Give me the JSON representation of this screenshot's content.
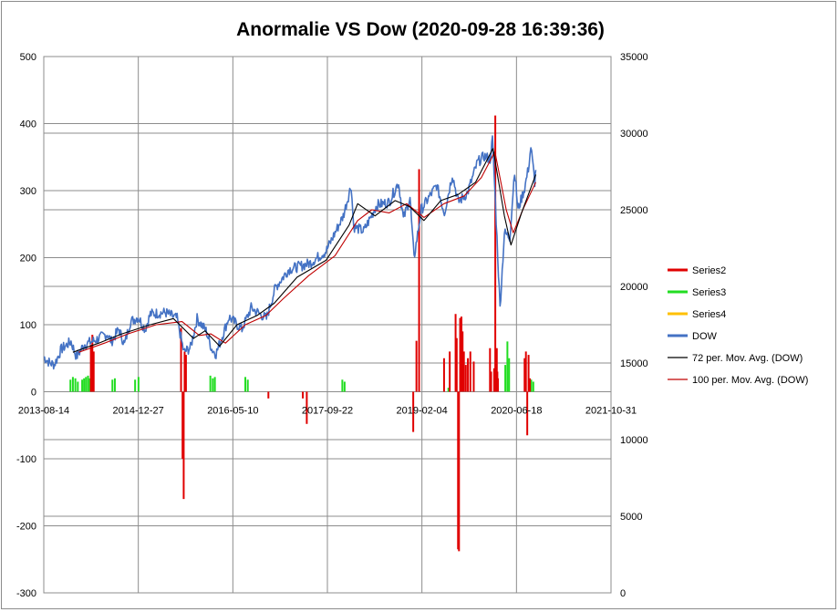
{
  "chart_data": {
    "type": "line",
    "title": "Anormalie VS Dow (2020-09-28 16:39:36)",
    "x_axis": {
      "ticks": [
        "2013-08-14",
        "2014-12-27",
        "2016-05-10",
        "2017-09-22",
        "2019-02-04",
        "2020-06-18",
        "2021-10-31"
      ],
      "range": [
        "2013-08-14",
        "2021-10-31"
      ]
    },
    "y_left": {
      "range": [
        -300,
        500
      ],
      "ticks": [
        -300,
        -200,
        -100,
        0,
        100,
        200,
        300,
        400,
        500
      ]
    },
    "y_right": {
      "range": [
        0,
        35000
      ],
      "ticks": [
        0,
        5000,
        10000,
        15000,
        20000,
        25000,
        30000,
        35000
      ]
    },
    "grid": true,
    "legend_position": "right",
    "series": [
      {
        "name": "Series2",
        "axis": "left",
        "style": "spikes",
        "color": "#e00000",
        "points": [
          [
            "2014-04-20",
            70
          ],
          [
            "2014-04-28",
            85
          ],
          [
            "2014-05-05",
            60
          ],
          [
            "2015-08-10",
            95
          ],
          [
            "2015-08-18",
            -100
          ],
          [
            "2015-08-24",
            -160
          ],
          [
            "2015-08-29",
            60
          ],
          [
            "2015-09-05",
            55
          ],
          [
            "2016-11-14",
            -10
          ],
          [
            "2017-05-15",
            -10
          ],
          [
            "2017-06-05",
            -48
          ],
          [
            "2018-12-20",
            -60
          ],
          [
            "2019-01-06",
            76
          ],
          [
            "2019-01-20",
            332
          ],
          [
            "2019-06-01",
            50
          ],
          [
            "2019-07-01",
            60
          ],
          [
            "2019-08-01",
            116
          ],
          [
            "2019-08-07",
            80
          ],
          [
            "2019-08-14",
            -235
          ],
          [
            "2019-08-19",
            -238
          ],
          [
            "2019-08-25",
            110
          ],
          [
            "2019-09-01",
            112
          ],
          [
            "2019-09-07",
            90
          ],
          [
            "2019-09-14",
            60
          ],
          [
            "2019-09-24",
            40
          ],
          [
            "2019-10-05",
            50
          ],
          [
            "2019-10-18",
            60
          ],
          [
            "2019-11-05",
            45
          ],
          [
            "2020-01-30",
            65
          ],
          [
            "2020-02-05",
            30
          ],
          [
            "2020-02-21",
            35
          ],
          [
            "2020-02-27",
            412
          ],
          [
            "2020-03-06",
            65
          ],
          [
            "2020-03-09",
            30
          ],
          [
            "2020-03-12",
            20
          ],
          [
            "2020-07-31",
            50
          ],
          [
            "2020-08-07",
            60
          ],
          [
            "2020-08-14",
            -65
          ],
          [
            "2020-08-21",
            55
          ],
          [
            "2020-08-28",
            20
          ]
        ]
      },
      {
        "name": "Series3",
        "axis": "left",
        "style": "spikes",
        "color": "#22dd22",
        "points": [
          [
            "2014-01-02",
            18
          ],
          [
            "2014-01-15",
            22
          ],
          [
            "2014-01-28",
            20
          ],
          [
            "2014-02-10",
            15
          ],
          [
            "2014-03-05",
            18
          ],
          [
            "2014-03-15",
            20
          ],
          [
            "2014-03-25",
            22
          ],
          [
            "2014-04-05",
            24
          ],
          [
            "2014-04-15",
            20
          ],
          [
            "2014-08-12",
            18
          ],
          [
            "2014-08-25",
            20
          ],
          [
            "2014-12-10",
            18
          ],
          [
            "2014-12-28",
            22
          ],
          [
            "2016-01-12",
            24
          ],
          [
            "2016-01-25",
            20
          ],
          [
            "2016-02-05",
            22
          ],
          [
            "2016-07-15",
            22
          ],
          [
            "2016-07-28",
            18
          ],
          [
            "2017-12-10",
            18
          ],
          [
            "2017-12-22",
            15
          ],
          [
            "2019-06-24",
            6
          ],
          [
            "2020-04-20",
            40
          ],
          [
            "2020-05-01",
            75
          ],
          [
            "2020-05-10",
            50
          ],
          [
            "2020-08-25",
            12
          ],
          [
            "2020-09-04",
            18
          ],
          [
            "2020-09-15",
            15
          ]
        ]
      },
      {
        "name": "Series4",
        "axis": "left",
        "style": "line",
        "color": "#ffc000",
        "points": []
      },
      {
        "name": "DOW",
        "axis": "right",
        "style": "line",
        "color": "#4472c4",
        "points": [
          [
            "2013-08-14",
            15400
          ],
          [
            "2013-09-15",
            15000
          ],
          [
            "2013-10-09",
            14900
          ],
          [
            "2013-11-15",
            15900
          ],
          [
            "2014-01-05",
            16400
          ],
          [
            "2014-02-03",
            15400
          ],
          [
            "2014-03-15",
            16200
          ],
          [
            "2014-05-15",
            16500
          ],
          [
            "2014-07-15",
            16900
          ],
          [
            "2014-08-07",
            16400
          ],
          [
            "2014-09-15",
            17200
          ],
          [
            "2014-10-15",
            16200
          ],
          [
            "2014-11-15",
            17700
          ],
          [
            "2014-12-26",
            18000
          ],
          [
            "2015-02-01",
            17200
          ],
          [
            "2015-03-01",
            18200
          ],
          [
            "2015-05-19",
            18300
          ],
          [
            "2015-07-20",
            17900
          ],
          [
            "2015-08-25",
            15700
          ],
          [
            "2015-09-29",
            16000
          ],
          [
            "2015-11-03",
            17900
          ],
          [
            "2015-12-20",
            17100
          ],
          [
            "2016-01-20",
            15900
          ],
          [
            "2016-02-11",
            15600
          ],
          [
            "2016-04-20",
            18000
          ],
          [
            "2016-06-27",
            17200
          ],
          [
            "2016-08-15",
            18600
          ],
          [
            "2016-11-04",
            17900
          ],
          [
            "2016-12-20",
            19900
          ],
          [
            "2017-03-01",
            21100
          ],
          [
            "2017-06-20",
            21500
          ],
          [
            "2017-09-15",
            22300
          ],
          [
            "2017-12-15",
            24600
          ],
          [
            "2018-01-26",
            26600
          ],
          [
            "2018-02-08",
            23900
          ],
          [
            "2018-04-02",
            23600
          ],
          [
            "2018-06-10",
            25300
          ],
          [
            "2018-08-15",
            25500
          ],
          [
            "2018-10-03",
            26800
          ],
          [
            "2018-10-29",
            24400
          ],
          [
            "2018-12-03",
            25800
          ],
          [
            "2018-12-24",
            21800
          ],
          [
            "2019-01-31",
            25000
          ],
          [
            "2019-04-23",
            26600
          ],
          [
            "2019-06-03",
            24800
          ],
          [
            "2019-07-15",
            27300
          ],
          [
            "2019-08-15",
            25500
          ],
          [
            "2019-10-03",
            26100
          ],
          [
            "2019-11-25",
            28100
          ],
          [
            "2019-12-31",
            28500
          ],
          [
            "2020-01-31",
            28300
          ],
          [
            "2020-02-12",
            29600
          ],
          [
            "2020-02-28",
            25400
          ],
          [
            "2020-03-23",
            18600
          ],
          [
            "2020-04-15",
            23500
          ],
          [
            "2020-05-14",
            23200
          ],
          [
            "2020-06-08",
            27600
          ],
          [
            "2020-06-26",
            25000
          ],
          [
            "2020-07-31",
            26400
          ],
          [
            "2020-08-20",
            27700
          ],
          [
            "2020-09-02",
            29100
          ],
          [
            "2020-09-23",
            26800
          ],
          [
            "2020-09-28",
            27600
          ]
        ]
      },
      {
        "name": "72 per. Mov. Avg. (DOW)",
        "axis": "right",
        "style": "line",
        "color": "#000000",
        "points": [
          [
            "2014-01-15",
            15700
          ],
          [
            "2014-06-01",
            16300
          ],
          [
            "2014-10-01",
            16900
          ],
          [
            "2015-03-01",
            17500
          ],
          [
            "2015-07-01",
            17900
          ],
          [
            "2015-10-15",
            16600
          ],
          [
            "2015-12-15",
            17100
          ],
          [
            "2016-03-01",
            16100
          ],
          [
            "2016-06-01",
            17500
          ],
          [
            "2016-09-15",
            18100
          ],
          [
            "2016-12-15",
            18900
          ],
          [
            "2017-04-15",
            20600
          ],
          [
            "2017-09-15",
            21700
          ],
          [
            "2018-01-15",
            24000
          ],
          [
            "2018-03-01",
            25400
          ],
          [
            "2018-06-01",
            24600
          ],
          [
            "2018-09-15",
            25600
          ],
          [
            "2018-12-01",
            25200
          ],
          [
            "2019-02-15",
            24300
          ],
          [
            "2019-05-15",
            25600
          ],
          [
            "2019-08-15",
            26000
          ],
          [
            "2019-11-15",
            26800
          ],
          [
            "2020-02-15",
            29000
          ],
          [
            "2020-04-15",
            24600
          ],
          [
            "2020-05-20",
            22700
          ],
          [
            "2020-07-15",
            24800
          ],
          [
            "2020-09-28",
            27300
          ]
        ]
      },
      {
        "name": "100 per. Mov. Avg. (DOW)",
        "axis": "right",
        "style": "line",
        "color": "#c00000",
        "points": [
          [
            "2014-02-15",
            15700
          ],
          [
            "2014-07-01",
            16300
          ],
          [
            "2014-11-01",
            16900
          ],
          [
            "2015-04-01",
            17500
          ],
          [
            "2015-08-15",
            17700
          ],
          [
            "2015-11-15",
            16800
          ],
          [
            "2016-01-15",
            16900
          ],
          [
            "2016-04-01",
            16300
          ],
          [
            "2016-07-15",
            17500
          ],
          [
            "2016-11-01",
            18100
          ],
          [
            "2017-02-01",
            19200
          ],
          [
            "2017-06-15",
            20700
          ],
          [
            "2017-11-01",
            22000
          ],
          [
            "2018-03-01",
            24300
          ],
          [
            "2018-05-15",
            25000
          ],
          [
            "2018-08-15",
            24800
          ],
          [
            "2018-11-15",
            25400
          ],
          [
            "2019-02-15",
            24500
          ],
          [
            "2019-06-01",
            25400
          ],
          [
            "2019-09-15",
            25900
          ],
          [
            "2019-12-15",
            27100
          ],
          [
            "2020-02-25",
            28800
          ],
          [
            "2020-04-25",
            25000
          ],
          [
            "2020-06-01",
            23500
          ],
          [
            "2020-07-25",
            25100
          ],
          [
            "2020-09-28",
            26800
          ]
        ]
      }
    ]
  }
}
